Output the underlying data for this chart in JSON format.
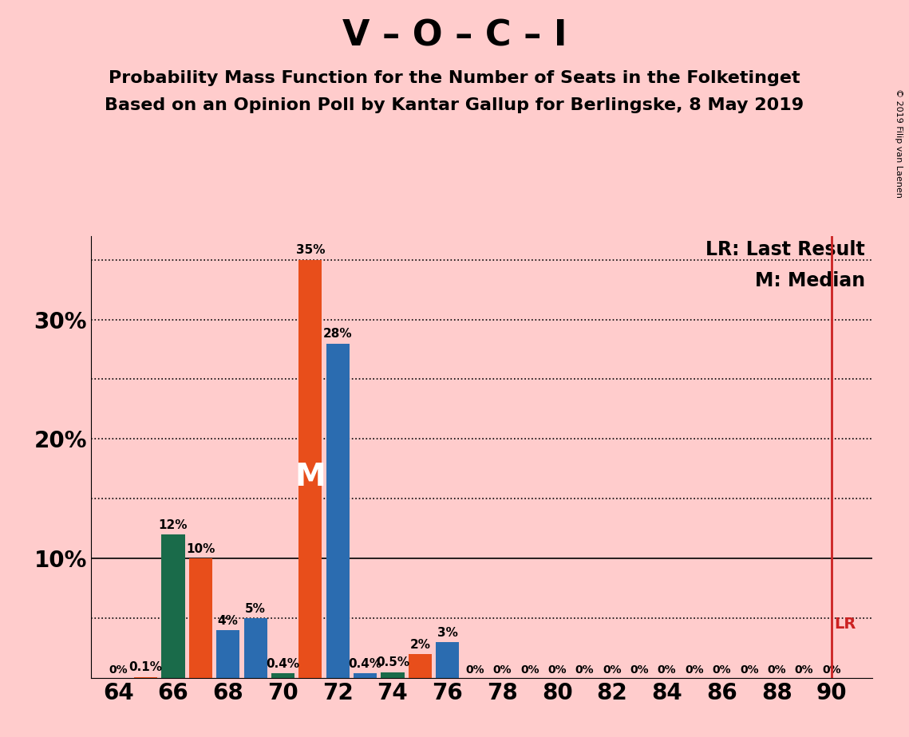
{
  "title": "V – O – C – I",
  "subtitle1": "Probability Mass Function for the Number of Seats in the Folketinget",
  "subtitle2": "Based on an Opinion Poll by Kantar Gallup for Berlingske, 8 May 2019",
  "copyright": "© 2019 Filip van Laenen",
  "background_color": "#FFCCCC",
  "bar_data": [
    {
      "seat": 64,
      "color": "#1a6b4a",
      "value": 0.0,
      "label": "0%"
    },
    {
      "seat": 65,
      "color": "#e84e1b",
      "value": 0.1,
      "label": "0.1%"
    },
    {
      "seat": 66,
      "color": "#1a6b4a",
      "value": 12.0,
      "label": "12%"
    },
    {
      "seat": 67,
      "color": "#e84e1b",
      "value": 10.0,
      "label": "10%"
    },
    {
      "seat": 68,
      "color": "#2b6cb0",
      "value": 4.0,
      "label": "4%"
    },
    {
      "seat": 69,
      "color": "#2b6cb0",
      "value": 5.0,
      "label": "5%"
    },
    {
      "seat": 70,
      "color": "#1a6b4a",
      "value": 0.4,
      "label": "0.4%"
    },
    {
      "seat": 71,
      "color": "#e84e1b",
      "value": 35.0,
      "label": "35%"
    },
    {
      "seat": 72,
      "color": "#2b6cb0",
      "value": 28.0,
      "label": "28%"
    },
    {
      "seat": 73,
      "color": "#2b6cb0",
      "value": 0.4,
      "label": "0.4%"
    },
    {
      "seat": 74,
      "color": "#1a6b4a",
      "value": 0.5,
      "label": "0.5%"
    },
    {
      "seat": 75,
      "color": "#e84e1b",
      "value": 2.0,
      "label": "2%"
    },
    {
      "seat": 76,
      "color": "#2b6cb0",
      "value": 3.0,
      "label": "3%"
    },
    {
      "seat": 77,
      "color": "#2b6cb0",
      "value": 0.0,
      "label": "0%"
    },
    {
      "seat": 78,
      "color": "#2b6cb0",
      "value": 0.0,
      "label": "0%"
    },
    {
      "seat": 79,
      "color": "#2b6cb0",
      "value": 0.0,
      "label": "0%"
    },
    {
      "seat": 80,
      "color": "#2b6cb0",
      "value": 0.0,
      "label": "0%"
    },
    {
      "seat": 81,
      "color": "#2b6cb0",
      "value": 0.0,
      "label": "0%"
    },
    {
      "seat": 82,
      "color": "#2b6cb0",
      "value": 0.0,
      "label": "0%"
    },
    {
      "seat": 83,
      "color": "#2b6cb0",
      "value": 0.0,
      "label": "0%"
    },
    {
      "seat": 84,
      "color": "#2b6cb0",
      "value": 0.0,
      "label": "0%"
    },
    {
      "seat": 85,
      "color": "#2b6cb0",
      "value": 0.0,
      "label": "0%"
    },
    {
      "seat": 86,
      "color": "#2b6cb0",
      "value": 0.0,
      "label": "0%"
    },
    {
      "seat": 87,
      "color": "#2b6cb0",
      "value": 0.0,
      "label": "0%"
    },
    {
      "seat": 88,
      "color": "#2b6cb0",
      "value": 0.0,
      "label": "0%"
    },
    {
      "seat": 89,
      "color": "#2b6cb0",
      "value": 0.0,
      "label": "0%"
    },
    {
      "seat": 90,
      "color": "#2b6cb0",
      "value": 0.0,
      "label": "0%"
    }
  ],
  "median_seat": 71,
  "median_label": "M",
  "lr_seat": 90,
  "lr_label": "LR",
  "lr_line_color": "#cc2222",
  "xlim_left": 63.0,
  "xlim_right": 91.5,
  "ylim_top": 37.0,
  "xticks": [
    64,
    66,
    68,
    70,
    72,
    74,
    76,
    78,
    80,
    82,
    84,
    86,
    88,
    90
  ],
  "dotted_hlines": [
    5,
    15,
    20,
    25,
    30,
    35
  ],
  "solid_hline": 10,
  "bar_width": 0.85,
  "title_fontsize": 32,
  "subtitle_fontsize": 16,
  "tick_fontsize": 20,
  "bar_label_fontsize": 11,
  "median_fontsize": 28,
  "legend_fontsize": 17,
  "lr_legend_label": "LR: Last Result",
  "median_legend_label": "M: Median",
  "ytick_positions": [
    10,
    20,
    30
  ],
  "ytick_labels": [
    "10%",
    "20%",
    "30%"
  ]
}
